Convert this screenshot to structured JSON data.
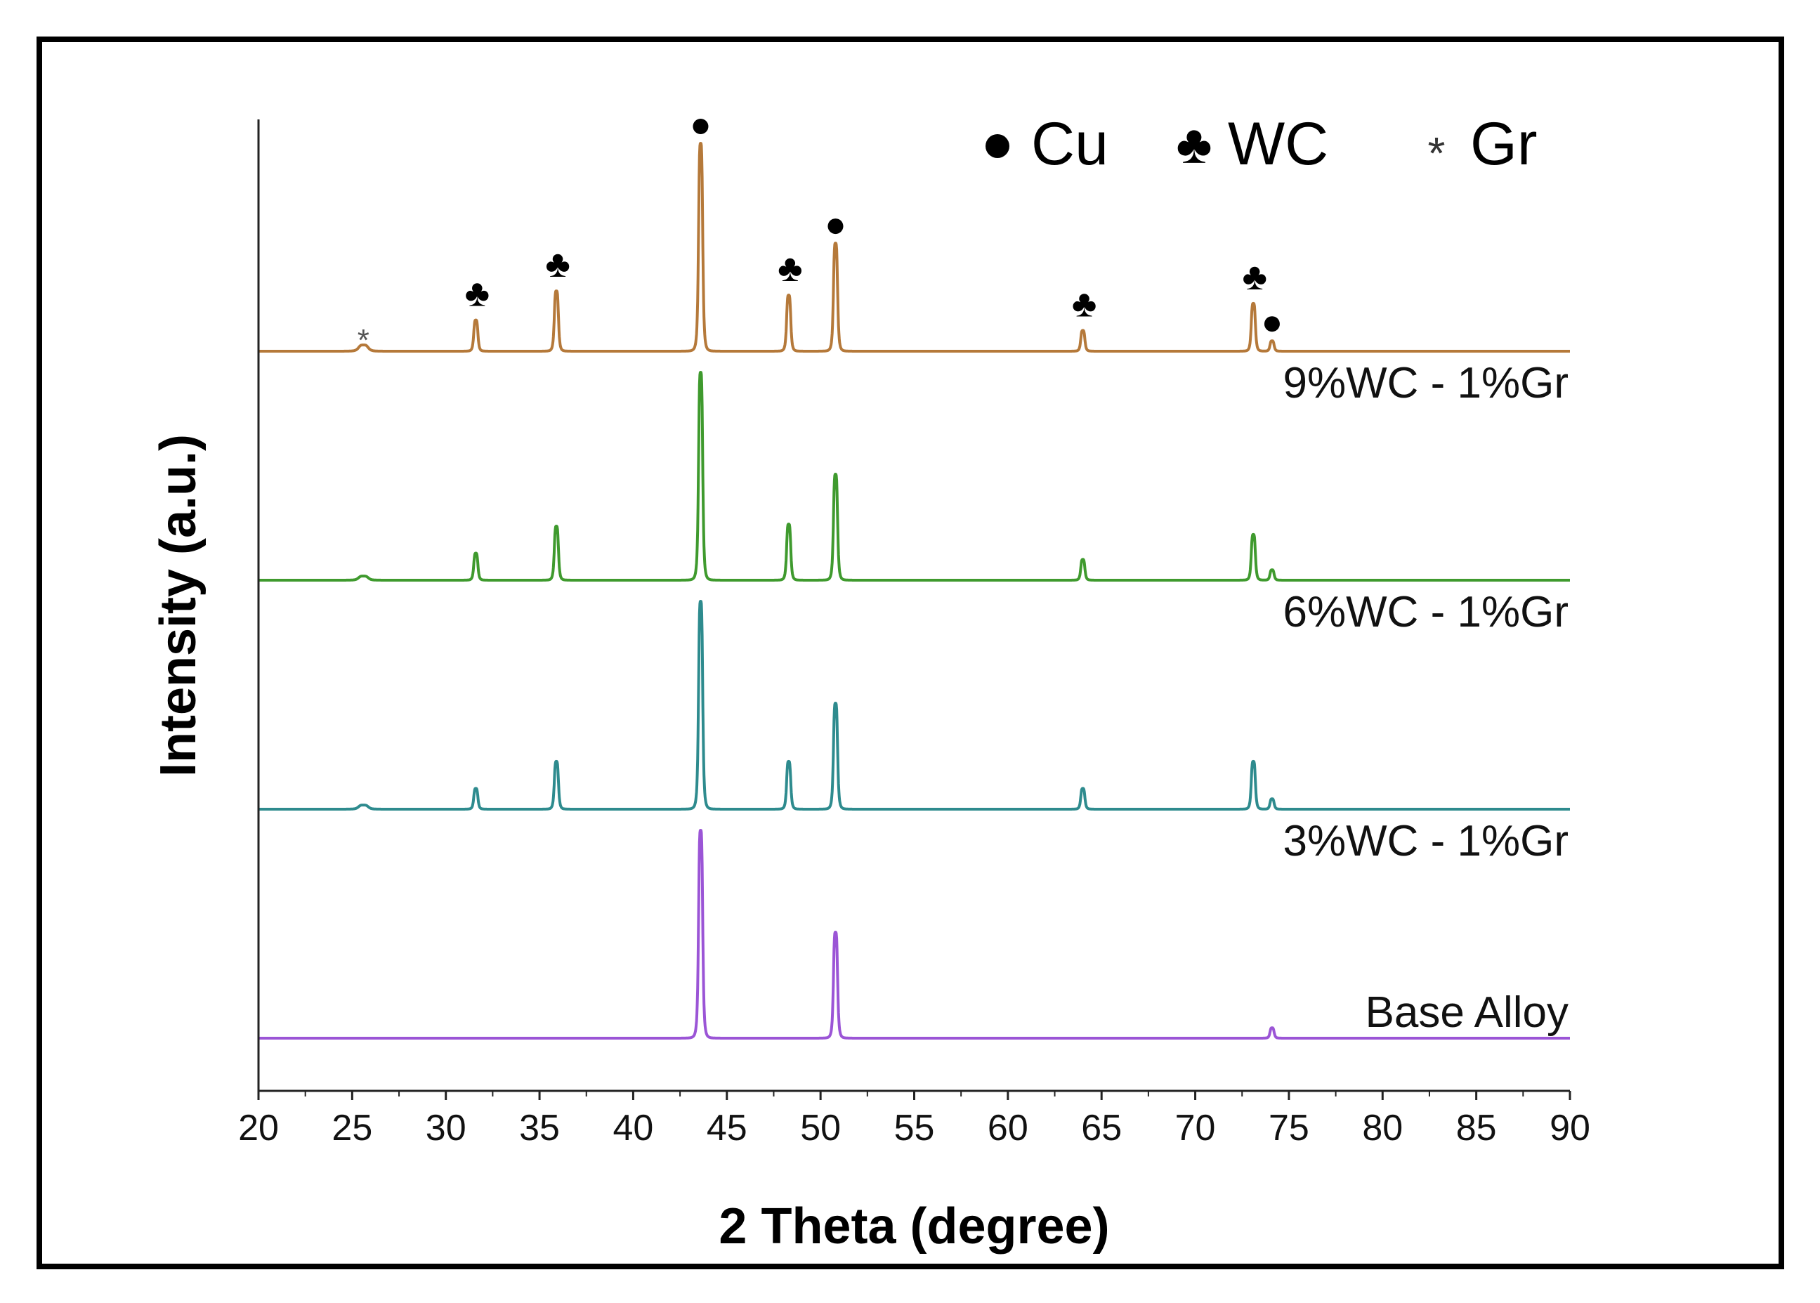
{
  "chart_data": {
    "type": "line",
    "title": "",
    "xlabel": "2 Theta (degree)",
    "ylabel": "Intensity (a.u.)",
    "xlim": [
      20,
      90
    ],
    "xticks": [
      20,
      25,
      30,
      35,
      40,
      45,
      50,
      55,
      60,
      65,
      70,
      75,
      80,
      85,
      90
    ],
    "y_ticks_shown": false,
    "grid": false,
    "legend": [
      {
        "symbol": "●",
        "label": "Cu",
        "name": "legend-cu"
      },
      {
        "symbol": "♣",
        "label": "WC",
        "name": "legend-wc"
      },
      {
        "symbol": "*",
        "label": "Gr",
        "name": "legend-gr"
      }
    ],
    "series": [
      {
        "name": "9%WC - 1%Gr",
        "key": "9wc",
        "color": "#b5793a",
        "offset": 3,
        "peaks": [
          {
            "two_theta": 25.6,
            "intensity": 3,
            "phase": "Gr"
          },
          {
            "two_theta": 31.6,
            "intensity": 15,
            "phase": "WC"
          },
          {
            "two_theta": 35.9,
            "intensity": 29,
            "phase": "WC"
          },
          {
            "two_theta": 43.6,
            "intensity": 100,
            "phase": "Cu"
          },
          {
            "two_theta": 48.3,
            "intensity": 27,
            "phase": "WC"
          },
          {
            "two_theta": 50.8,
            "intensity": 52,
            "phase": "Cu"
          },
          {
            "two_theta": 64.0,
            "intensity": 10,
            "phase": "WC"
          },
          {
            "two_theta": 73.1,
            "intensity": 23,
            "phase": "WC"
          },
          {
            "two_theta": 74.1,
            "intensity": 5,
            "phase": "Cu"
          }
        ]
      },
      {
        "name": "6%WC - 1%Gr",
        "key": "6wc",
        "color": "#3f9a2e",
        "offset": 2,
        "peaks": [
          {
            "two_theta": 25.6,
            "intensity": 2
          },
          {
            "two_theta": 31.6,
            "intensity": 13
          },
          {
            "two_theta": 35.9,
            "intensity": 26
          },
          {
            "two_theta": 43.6,
            "intensity": 100
          },
          {
            "two_theta": 48.3,
            "intensity": 27
          },
          {
            "two_theta": 50.8,
            "intensity": 51
          },
          {
            "two_theta": 64.0,
            "intensity": 10
          },
          {
            "two_theta": 73.1,
            "intensity": 22
          },
          {
            "two_theta": 74.1,
            "intensity": 5
          }
        ]
      },
      {
        "name": "3%WC - 1%Gr",
        "key": "3wc",
        "color": "#2e8b8e",
        "offset": 1,
        "peaks": [
          {
            "two_theta": 25.6,
            "intensity": 2
          },
          {
            "two_theta": 31.6,
            "intensity": 10
          },
          {
            "two_theta": 35.9,
            "intensity": 23
          },
          {
            "two_theta": 43.6,
            "intensity": 100
          },
          {
            "two_theta": 48.3,
            "intensity": 23
          },
          {
            "two_theta": 50.8,
            "intensity": 51
          },
          {
            "two_theta": 64.0,
            "intensity": 10
          },
          {
            "two_theta": 73.1,
            "intensity": 23
          },
          {
            "two_theta": 74.1,
            "intensity": 5
          }
        ]
      },
      {
        "name": "Base Alloy",
        "key": "base",
        "color": "#9b55d6",
        "offset": 0,
        "peaks": [
          {
            "two_theta": 43.6,
            "intensity": 100
          },
          {
            "two_theta": 50.8,
            "intensity": 51
          },
          {
            "two_theta": 74.1,
            "intensity": 5
          }
        ]
      }
    ]
  }
}
